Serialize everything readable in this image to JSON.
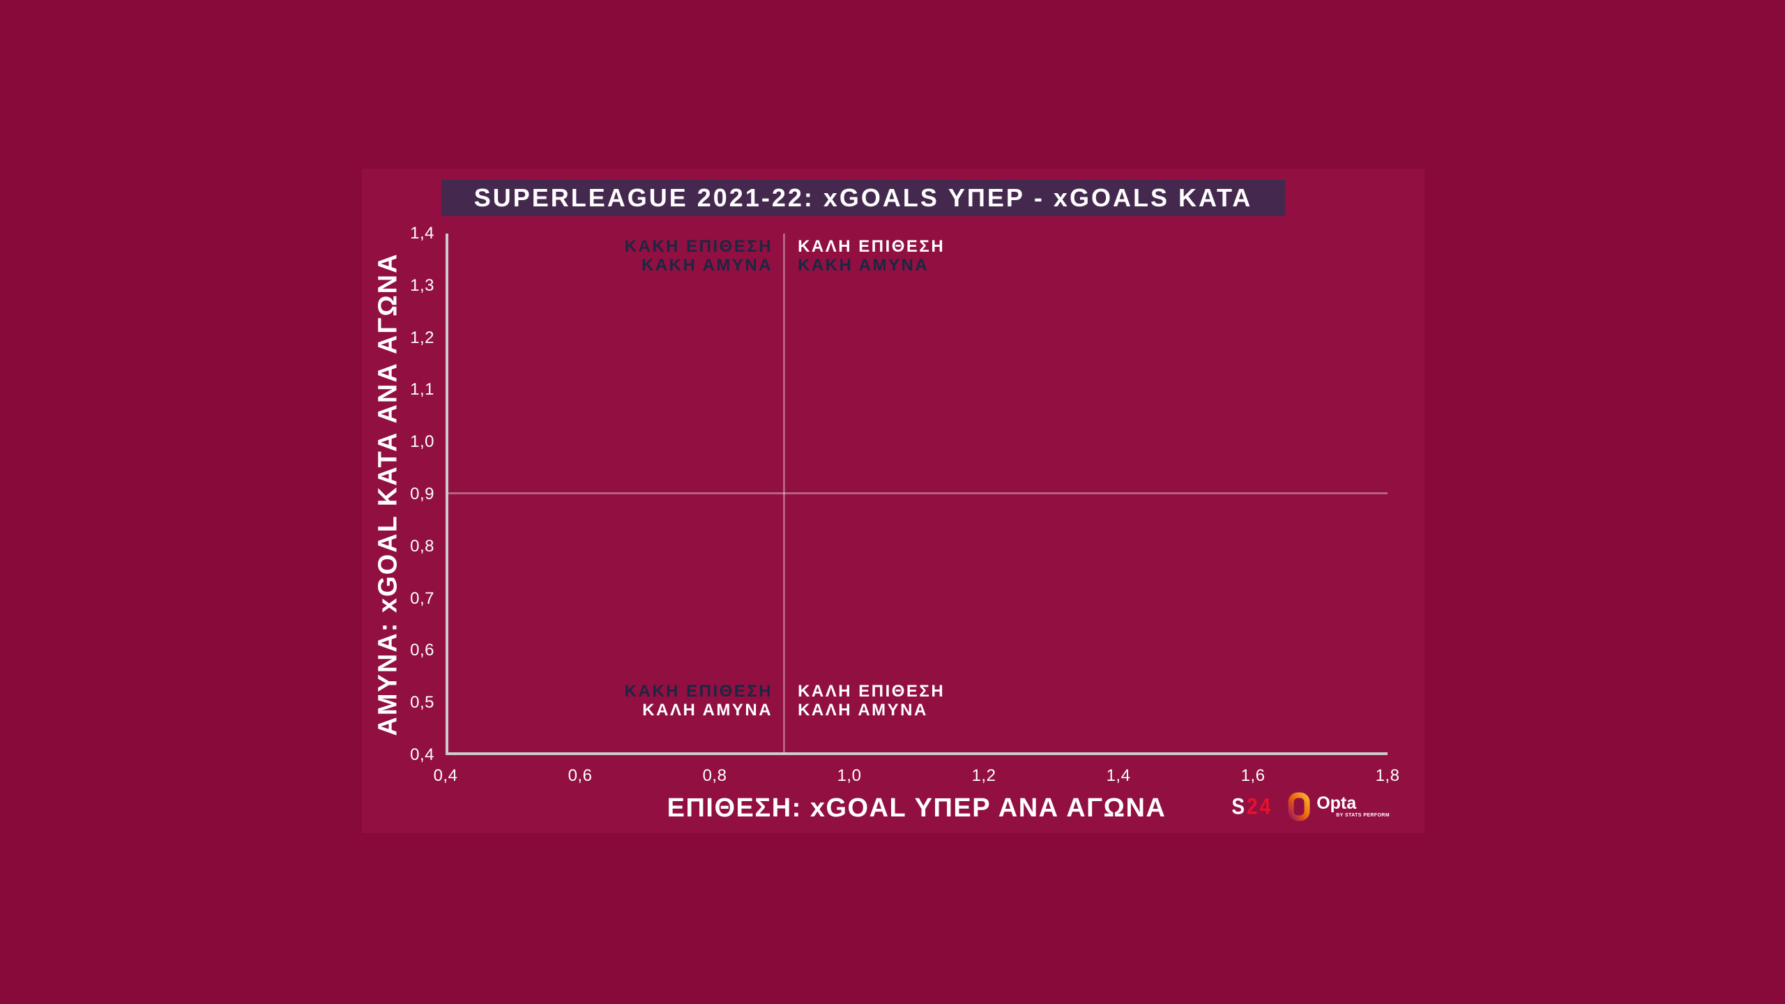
{
  "colors": {
    "background": "#870A3B",
    "card_background": "#910F41",
    "title_bar_background": "#44284E",
    "title_text": "#FFFFFF",
    "axis_line": "#CCCCCC",
    "tick_text": "#FFFFFF",
    "crosshair_line": "rgba(255,255,255,0.35)",
    "label_dark": "#1B2742",
    "label_light": "#FFFFFF",
    "s24_red": "#E8112D",
    "opta_gradient_start": "#F9B233",
    "opta_gradient_mid": "#EC6608",
    "opta_gradient_end": "#A3195B"
  },
  "chart_data": {
    "type": "scatter",
    "title": "SUPERLEAGUE 2021-22: xGOALS ΥΠΕΡ - xGOALS ΚΑΤΑ",
    "xlabel": "ΕΠΙΘΕΣΗ: xGOAL ΥΠΕΡ ΑΝΑ ΑΓΩΝΑ",
    "ylabel": "ΑΜΥΝΑ: xGOAL ΚΑΤΑ ΑΝΑ ΑΓΩΝΑ",
    "xlim": [
      0.4,
      1.8
    ],
    "ylim": [
      0.4,
      1.4
    ],
    "x_ticks": [
      0.4,
      0.6,
      0.8,
      1.0,
      1.2,
      1.4,
      1.6,
      1.8
    ],
    "x_tick_labels": [
      "0,4",
      "0,6",
      "0,8",
      "1,0",
      "1,2",
      "1,4",
      "1,6",
      "1,8"
    ],
    "y_ticks": [
      0.4,
      0.5,
      0.6,
      0.7,
      0.8,
      0.9,
      1.0,
      1.1,
      1.2,
      1.3,
      1.4
    ],
    "y_tick_labels": [
      "0,4",
      "0,5",
      "0,6",
      "0,7",
      "0,8",
      "0,9",
      "1,0",
      "1,1",
      "1,2",
      "1,3",
      "1,4"
    ],
    "grid": false,
    "reference_lines": {
      "x": 0.9,
      "y": 0.9
    },
    "series": [],
    "annotations": [
      {
        "quadrant": "top-left",
        "lines": [
          {
            "text": "ΚΑΚΗ ΕΠΙΘΕΣΗ",
            "tone": "dark"
          },
          {
            "text": "ΚΑΚΗ ΑΜΥΝΑ",
            "tone": "dark"
          }
        ]
      },
      {
        "quadrant": "top-right",
        "lines": [
          {
            "text": "ΚΑΛΗ ΕΠΙΘΕΣΗ",
            "tone": "light"
          },
          {
            "text": "ΚΑΚΗ ΑΜΥΝΑ",
            "tone": "dark"
          }
        ]
      },
      {
        "quadrant": "bottom-left",
        "lines": [
          {
            "text": "ΚΑΚΗ ΕΠΙΘΕΣΗ",
            "tone": "dark"
          },
          {
            "text": "ΚΑΛΗ ΑΜΥΝΑ",
            "tone": "light"
          }
        ]
      },
      {
        "quadrant": "bottom-right",
        "lines": [
          {
            "text": "ΚΑΛΗ ΕΠΙΘΕΣΗ",
            "tone": "light"
          },
          {
            "text": "ΚΑΛΗ ΑΜΥΝΑ",
            "tone": "light"
          }
        ]
      }
    ]
  },
  "footer": {
    "s24_white": "S",
    "s24_red": "24",
    "opta_name": "Opta",
    "opta_sub": "BY STATS PERFORM"
  }
}
